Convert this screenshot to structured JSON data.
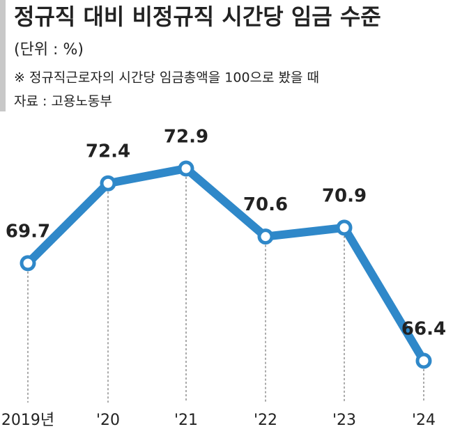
{
  "chart_data": {
    "type": "line",
    "title": "정규직 대비 비정규직 시간당 임금 수준",
    "subtitle": "(단위 : %)",
    "note": "※ 정규직근로자의 시간당 임금총액을 100으로 봤을 때",
    "source": "자료 : 고용노동부",
    "categories": [
      "2019년",
      "'20",
      "'21",
      "'22",
      "'23",
      "'24"
    ],
    "values": [
      69.7,
      72.4,
      72.9,
      70.6,
      70.9,
      66.4
    ],
    "color": "#2f88c9"
  }
}
